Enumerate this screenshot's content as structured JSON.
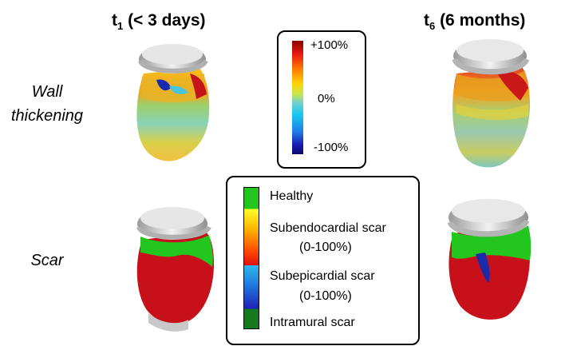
{
  "columns": {
    "left": {
      "t": "t",
      "sub": "1",
      "rest": " (< 3 days)"
    },
    "right": {
      "t": "t",
      "sub": "6",
      "rest": " (6 months)"
    }
  },
  "rows": {
    "wall_thickening": {
      "line1": "Wall",
      "line2": "thickening"
    },
    "scar": {
      "label": "Scar"
    }
  },
  "colorbar": {
    "top": "+100%",
    "mid": "0%",
    "bottom": "-100%"
  },
  "legend": {
    "healthy": "Healthy",
    "subendo_1": "Subendocardial scar",
    "subendo_2": "(0-100%)",
    "subepi_1": "Subepicardial scar",
    "subepi_2": "(0-100%)",
    "intramural": "Intramural scar"
  },
  "colors": {
    "healthy": "#22c61f",
    "intramural": "#157a1e",
    "scar_red": "#c8101a",
    "cap_gray": "#c9c9c9"
  }
}
